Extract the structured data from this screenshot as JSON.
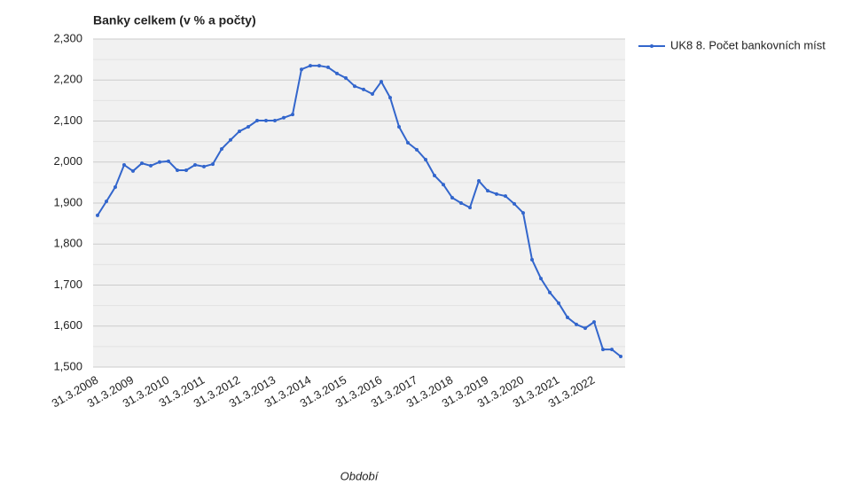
{
  "chart_data": {
    "type": "line",
    "title": "Banky celkem (v % a počty)",
    "x_label": "Období",
    "categories": [
      "31.3.2008",
      null,
      null,
      null,
      "31.3.2009",
      null,
      null,
      null,
      "31.3.2010",
      null,
      null,
      null,
      "31.3.2011",
      null,
      null,
      null,
      "31.3.2012",
      null,
      null,
      null,
      "31.3.2013",
      null,
      null,
      null,
      "31.3.2014",
      null,
      null,
      null,
      "31.3.2015",
      null,
      null,
      null,
      "31.3.2016",
      null,
      null,
      null,
      "31.3.2017",
      null,
      null,
      null,
      "31.3.2018",
      null,
      null,
      null,
      "31.3.2019",
      null,
      null,
      null,
      "31.3.2020",
      null,
      null,
      null,
      "31.3.2021",
      null,
      null,
      null,
      "31.3.2022",
      null,
      null,
      null
    ],
    "series": [
      {
        "name": "UK8 8. Počet bankovních míst",
        "color": "#3366cc",
        "values": [
          1870,
          1904,
          1939,
          1993,
          1978,
          1997,
          1991,
          2000,
          2002,
          1980,
          1980,
          1993,
          1989,
          1995,
          2032,
          2054,
          2075,
          2086,
          2101,
          2101,
          2101,
          2108,
          2116,
          2226,
          2235,
          2235,
          2231,
          2216,
          2205,
          2185,
          2177,
          2166,
          2196,
          2157,
          2086,
          2047,
          2030,
          2006,
          1967,
          1945,
          1913,
          1900,
          1889,
          1954,
          1930,
          1922,
          1917,
          1898,
          1876,
          1762,
          1716,
          1682,
          1656,
          1621,
          1604,
          1595,
          1610,
          1543,
          1543,
          1526
        ]
      }
    ],
    "ylim": [
      1500,
      2300
    ],
    "yticks": [
      {
        "value": 1500,
        "label": "1,500"
      },
      {
        "value": 1600,
        "label": "1,600"
      },
      {
        "value": 1700,
        "label": "1,700"
      },
      {
        "value": 1800,
        "label": "1,800"
      },
      {
        "value": 1900,
        "label": "1,900"
      },
      {
        "value": 2000,
        "label": "2,000"
      },
      {
        "value": 2100,
        "label": "2,100"
      },
      {
        "value": 2200,
        "label": "2,200"
      },
      {
        "value": 2300,
        "label": "2,300"
      }
    ],
    "minor_yticks": [
      1550,
      1650,
      1750,
      1850,
      1950,
      2050,
      2150,
      2250
    ],
    "grid": true,
    "legend": "right"
  }
}
